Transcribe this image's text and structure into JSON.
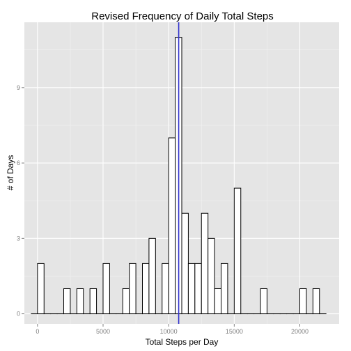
{
  "chart_data": {
    "type": "bar",
    "title": "Revised Frequency of Daily Total Steps",
    "xlabel": "Total Steps per Day",
    "ylabel": "# of Days",
    "xlim": [
      -1000,
      23000
    ],
    "ylim": [
      -0.4,
      11.6
    ],
    "x_ticks": [
      0,
      5000,
      10000,
      15000,
      20000
    ],
    "y_ticks": [
      0,
      3,
      6,
      9
    ],
    "bin_width": 500,
    "bins_x_start": 0,
    "bin_counts": [
      2,
      0,
      0,
      0,
      1,
      0,
      1,
      0,
      1,
      0,
      2,
      0,
      0,
      1,
      2,
      0,
      2,
      3,
      0,
      2,
      7,
      11,
      4,
      2,
      2,
      4,
      3,
      1,
      2,
      0,
      5,
      0,
      0,
      0,
      1,
      0,
      0,
      0,
      0,
      0,
      1,
      0,
      1,
      0
    ],
    "bin_fill": "#ffffff",
    "bin_outline": "#000000",
    "vline": {
      "x": 10766.19,
      "color": "#3333cc"
    },
    "panel_background": "#e5e5e5",
    "grid_color": "#ffffff",
    "grid": true,
    "legend": "none"
  }
}
